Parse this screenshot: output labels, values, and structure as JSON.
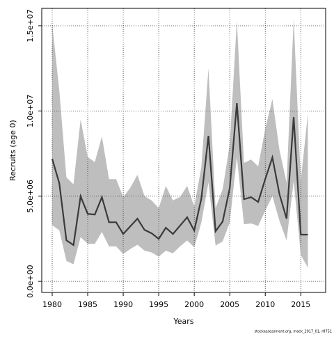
{
  "chart_data": {
    "type": "line",
    "xlabel": "Years",
    "ylabel": "Recruits (age 0)",
    "footnote": "stockassessment.org, mack_2017_01, r8751",
    "x": [
      1980,
      1981,
      1982,
      1983,
      1984,
      1985,
      1986,
      1987,
      1988,
      1989,
      1990,
      1991,
      1992,
      1993,
      1994,
      1995,
      1996,
      1997,
      1998,
      1999,
      2000,
      2001,
      2002,
      2003,
      2004,
      2005,
      2006,
      2007,
      2008,
      2009,
      2010,
      2011,
      2012,
      2013,
      2014,
      2015,
      2016
    ],
    "values": [
      7190000,
      5760000,
      2410000,
      2130000,
      4990000,
      3960000,
      3920000,
      4940000,
      3470000,
      3470000,
      2780000,
      3230000,
      3680000,
      3020000,
      2820000,
      2490000,
      3150000,
      2780000,
      3270000,
      3760000,
      2980000,
      4860000,
      8540000,
      2940000,
      3510000,
      5480000,
      10460000,
      4820000,
      4940000,
      4660000,
      6010000,
      7270000,
      5110000,
      3680000,
      9640000,
      2740000,
      2740000
    ],
    "upper": [
      15100000,
      11200000,
      6100000,
      5700000,
      9500000,
      7300000,
      7000000,
      8500000,
      6000000,
      6000000,
      4950000,
      5500000,
      6250000,
      5000000,
      4750000,
      4300000,
      5600000,
      4750000,
      4950000,
      5600000,
      4400000,
      6700000,
      12500000,
      4300000,
      5400000,
      8050000,
      15300000,
      6950000,
      7150000,
      6750000,
      8950000,
      10700000,
      7700000,
      5800000,
      15400000,
      5900000,
      9850000
    ],
    "lower": [
      3300000,
      3000000,
      1200000,
      1000000,
      2600000,
      2200000,
      2200000,
      2900000,
      2050000,
      2050000,
      1600000,
      1900000,
      2150000,
      1800000,
      1700000,
      1450000,
      1800000,
      1650000,
      2050000,
      2400000,
      2000000,
      3450000,
      5800000,
      2100000,
      2350000,
      3450000,
      7300000,
      3350000,
      3400000,
      3250000,
      4150000,
      5000000,
      3550000,
      2400000,
      5900000,
      1550000,
      800000
    ],
    "color": "#3a3a3a",
    "band_color": "#bebebe",
    "xlim": [
      1978.53,
      2018.5
    ],
    "ylim": [
      -650000,
      16020000
    ],
    "xticks": [
      1980,
      1985,
      1990,
      1995,
      2000,
      2005,
      2010,
      2015
    ],
    "yticks": [
      {
        "value": 0,
        "label": "0.0e+00"
      },
      {
        "value": 5000000,
        "label": "5.0e+06"
      },
      {
        "value": 10000000,
        "label": "1.0e+07"
      },
      {
        "value": 15000000,
        "label": "1.5e+07"
      }
    ],
    "grid": true
  }
}
